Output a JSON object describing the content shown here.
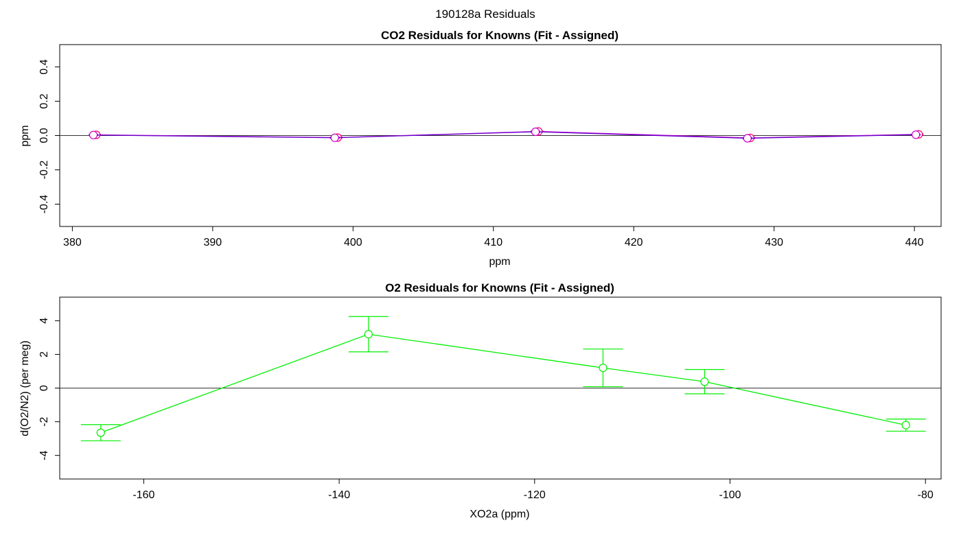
{
  "figure_title": "190128a  Residuals",
  "chart_data": [
    {
      "type": "line",
      "title": "CO2 Residuals for Knowns (Fit - Assigned)",
      "xlabel": "ppm",
      "ylabel": "ppm",
      "xlim": [
        379.1,
        441.9
      ],
      "ylim": [
        -0.53,
        0.53
      ],
      "xticks": [
        "380",
        "390",
        "400",
        "410",
        "420",
        "430",
        "440"
      ],
      "yticks": [
        "-0.4",
        "-0.2",
        "0.0",
        "0.2",
        "0.4"
      ],
      "reference_line": 0,
      "grid": false,
      "series": [
        {
          "color": "#cc00cc",
          "marker_edge": "#ff0066",
          "x": [
            381.7,
            398.9,
            413.2,
            428.3,
            440.3
          ],
          "y": [
            0.004,
            -0.012,
            0.024,
            -0.014,
            0.007
          ],
          "err": [
            0.003,
            0.004,
            0.004,
            0.004,
            0.003
          ]
        },
        {
          "color": "#6600cc",
          "marker_edge": "#cc00cc",
          "x": [
            381.5,
            398.7,
            413.0,
            428.1,
            440.1
          ],
          "y": [
            0.003,
            -0.013,
            0.022,
            -0.016,
            0.005
          ],
          "err": [
            0.003,
            0.004,
            0.004,
            0.004,
            0.003
          ]
        }
      ]
    },
    {
      "type": "line",
      "title": "O2 Residuals for Knowns (Fit - Assigned)",
      "xlabel": "XO2a (ppm)",
      "ylabel": "d(O2/N2) (per meg)",
      "xlim": [
        -168.6,
        -78.4
      ],
      "ylim": [
        -5.4,
        5.4
      ],
      "xticks": [
        "-160",
        "-140",
        "-120",
        "-100",
        "-80"
      ],
      "yticks": [
        "-4",
        "-2",
        "0",
        "2",
        "4"
      ],
      "reference_line": 0,
      "grid": false,
      "series": [
        {
          "color": "#00ee00",
          "marker_edge": "#00ee00",
          "x": [
            -164.4,
            -137.0,
            -113.0,
            -102.6,
            -82.0
          ],
          "y": [
            -2.65,
            3.2,
            1.2,
            0.38,
            -2.2
          ],
          "err": [
            0.48,
            1.05,
            1.12,
            0.72,
            0.36
          ]
        }
      ]
    }
  ]
}
